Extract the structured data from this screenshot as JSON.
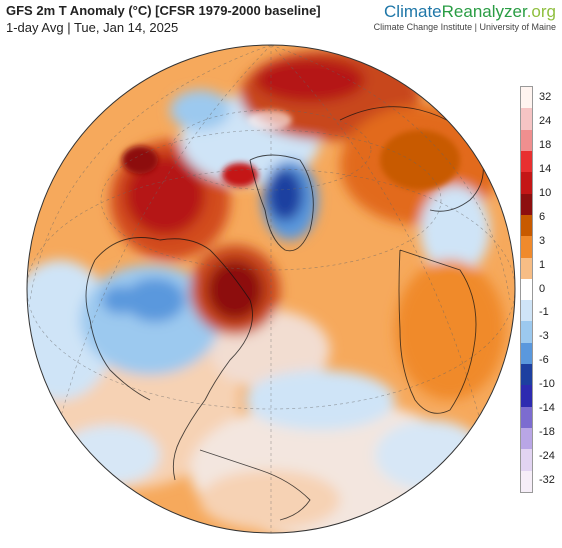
{
  "header": {
    "title": "GFS 2m T Anomaly (°C) [CFSR 1979-2000 baseline]",
    "subtitle": "1-day Avg | Tue, Jan 14, 2025"
  },
  "brand": {
    "name_part1": "Climate",
    "name_part2": "Reanalyzer",
    "name_part3": ".org",
    "subtitle": "Climate Change Institute | University of Maine"
  },
  "map": {
    "projection": "orthographic",
    "variable": "2m temperature anomaly"
  },
  "legend": {
    "labels": [
      "32",
      "24",
      "18",
      "14",
      "10",
      "6",
      "3",
      "1",
      "0",
      "-1",
      "-3",
      "-6",
      "-10",
      "-14",
      "-18",
      "-24",
      "-32"
    ],
    "colors": [
      "#fff4f0",
      "#f6c4c4",
      "#f08f8f",
      "#e83030",
      "#c41616",
      "#8d0f0f",
      "#c85a00",
      "#f08a2c",
      "#f7bd85",
      "#ffffff",
      "#cfe4f7",
      "#9cc9ef",
      "#5a98dd",
      "#1d3fa0",
      "#2d2ab0",
      "#7c6cd0",
      "#b9a6e6",
      "#e2d4f2",
      "#f6eef8"
    ]
  }
}
